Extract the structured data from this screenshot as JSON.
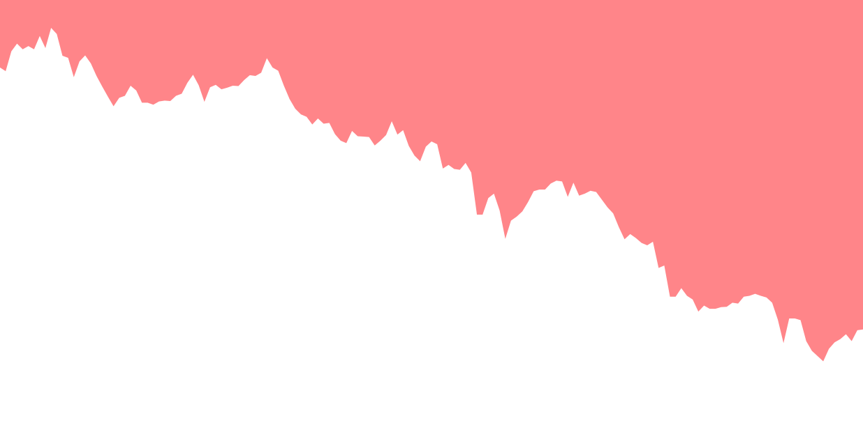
{
  "chart_data": {
    "type": "area",
    "fill_side": "above",
    "fill_color": "#ff8589",
    "background_color": "#ffffff",
    "title": "",
    "xlabel": "",
    "ylabel": "",
    "axes_visible": false,
    "grid": false,
    "legend": "none",
    "ylim": [
      0,
      100
    ],
    "series": [
      {
        "values": [
          83.3,
          82.4,
          87.3,
          89.2,
          87.8,
          88.6,
          87.8,
          91.1,
          88.1,
          93.1,
          91.6,
          86.2,
          85.7,
          80.9,
          84.8,
          86.3,
          84.3,
          81.2,
          78.6,
          76.1,
          73.7,
          75.8,
          76.3,
          78.8,
          77.6,
          74.6,
          74.6,
          74.1,
          74.9,
          75.1,
          75.0,
          76.3,
          76.8,
          79.5,
          81.5,
          78.9,
          74.8,
          78.4,
          79.0,
          77.9,
          78.3,
          78.8,
          78.7,
          80.2,
          81.4,
          81.2,
          82.0,
          85.6,
          83.3,
          82.5,
          78.8,
          75.5,
          73.1,
          71.7,
          71.1,
          69.2,
          70.7,
          69.4,
          69.6,
          66.8,
          65.2,
          64.6,
          67.6,
          66.3,
          66.2,
          66.1,
          64.0,
          65.2,
          66.6,
          70.0,
          66.7,
          67.8,
          63.9,
          61.5,
          60.1,
          63.7,
          65.0,
          64.3,
          58.3,
          59.2,
          58.2,
          58.0,
          59.7,
          57.3,
          46.9,
          46.9,
          51.0,
          52.1,
          47.9,
          40.9,
          45.4,
          46.4,
          47.7,
          50.0,
          52.7,
          53.1,
          53.1,
          54.6,
          55.3,
          55.1,
          51.3,
          54.8,
          51.6,
          52.1,
          52.8,
          52.5,
          50.6,
          48.7,
          47.2,
          43.8,
          40.8,
          42.1,
          41.1,
          39.9,
          39.3,
          40.2,
          33.7,
          34.3,
          26.6,
          26.6,
          28.7,
          26.8,
          25.9,
          22.9,
          24.4,
          23.6,
          23.6,
          24.0,
          24.1,
          25.1,
          24.9,
          26.6,
          26.8,
          27.3,
          26.8,
          26.4,
          25.1,
          20.9,
          15.1,
          21.2,
          21.2,
          20.8,
          15.6,
          13.2,
          11.9,
          10.6,
          13.7,
          15.3,
          16.1,
          17.3,
          15.6,
          18.3,
          18.5
        ]
      }
    ]
  }
}
